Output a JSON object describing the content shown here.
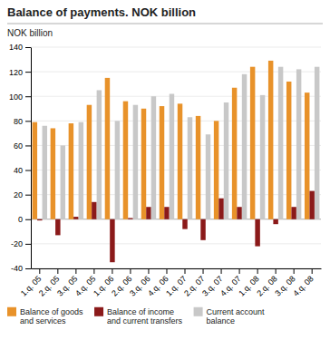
{
  "chart_data": {
    "type": "bar",
    "title": "Balance of payments. NOK billion",
    "ylabel": "NOK billion",
    "categories": [
      "1.q. 05",
      "2.q. 05",
      "3.q. 05",
      "4.q. 05",
      "1.q. 06",
      "2.q. 06",
      "3.q. 06",
      "4.q. 06",
      "1.q. 07",
      "2.q. 07",
      "3.q. 07",
      "4.q. 07",
      "1.q. 08",
      "2.q. 08",
      "3.q. 08",
      "4.q. 08"
    ],
    "series": [
      {
        "name": "Balance of goods\nand services",
        "color": "#E8922A",
        "values": [
          79,
          74,
          78,
          93,
          115,
          96,
          90,
          92,
          94,
          84,
          80,
          107,
          124,
          129,
          112,
          103
        ]
      },
      {
        "name": "Balance of income\nand current transfers",
        "color": "#8B1A1A",
        "values": [
          -1,
          -13,
          2,
          14,
          -35,
          1,
          10,
          10,
          -8,
          -17,
          17,
          10,
          -22,
          -4,
          10,
          23
        ]
      },
      {
        "name": "Current account\nbalance",
        "color": "#C8C8C8",
        "values": [
          76,
          60,
          79,
          105,
          80,
          93,
          100,
          102,
          83,
          69,
          95,
          118,
          101,
          124,
          122,
          124
        ]
      }
    ],
    "ylim": [
      -40,
      140
    ],
    "yticks": [
      -40,
      -20,
      0,
      20,
      40,
      60,
      80,
      100,
      120,
      140
    ],
    "grid": true,
    "legend": "bottom"
  }
}
